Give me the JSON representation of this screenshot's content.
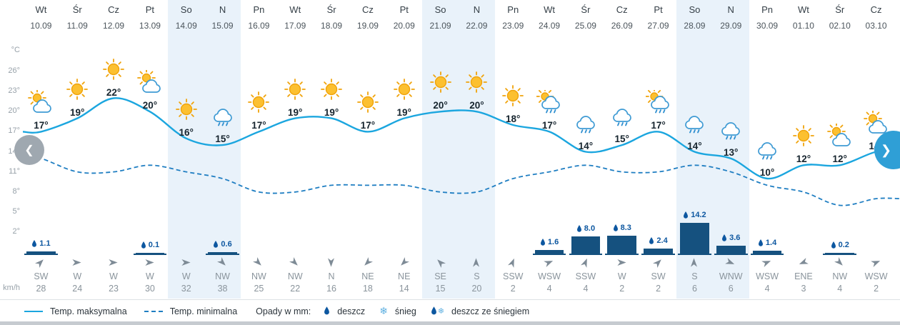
{
  "unit_labels": {
    "temp_axis": "°C",
    "wind_axis": "km/h"
  },
  "nav": {
    "prev": "❮",
    "next": "❯"
  },
  "legend": {
    "max_temp": "Temp. maksymalna",
    "min_temp": "Temp. minimalna",
    "precip_mm": "Opady w mm:",
    "rain": "deszcz",
    "snow": "śnieg",
    "rain_snow": "deszcz ze śniegiem"
  },
  "colors": {
    "max_line": "#1ba6df",
    "min_line": "#1f7ec2",
    "precip_bar": "#15517f",
    "weekend_bg": "#e9f2fa",
    "sun": "#fcc030",
    "next_button": "#2f9fd6"
  },
  "days": [
    {
      "day": "Wt",
      "date": "10.09",
      "temp": "17°",
      "icon": "sun-cloud",
      "precip": "1.1",
      "wind_dir": "SW",
      "wind_speed": "28",
      "weekend": false
    },
    {
      "day": "Śr",
      "date": "11.09",
      "temp": "19°",
      "icon": "sun",
      "precip": "",
      "wind_dir": "W",
      "wind_speed": "24",
      "weekend": false
    },
    {
      "day": "Cz",
      "date": "12.09",
      "temp": "22°",
      "icon": "sun",
      "precip": "",
      "wind_dir": "W",
      "wind_speed": "23",
      "weekend": false
    },
    {
      "day": "Pt",
      "date": "13.09",
      "temp": "20°",
      "icon": "sun-cloud",
      "precip": "0.1",
      "wind_dir": "W",
      "wind_speed": "30",
      "weekend": false
    },
    {
      "day": "So",
      "date": "14.09",
      "temp": "16°",
      "icon": "sun",
      "precip": "",
      "wind_dir": "W",
      "wind_speed": "32",
      "weekend": true
    },
    {
      "day": "N",
      "date": "15.09",
      "temp": "15°",
      "icon": "cloud-rain",
      "precip": "0.6",
      "wind_dir": "NW",
      "wind_speed": "38",
      "weekend": true
    },
    {
      "day": "Pn",
      "date": "16.09",
      "temp": "17°",
      "icon": "sun",
      "precip": "",
      "wind_dir": "NW",
      "wind_speed": "25",
      "weekend": false
    },
    {
      "day": "Wt",
      "date": "17.09",
      "temp": "19°",
      "icon": "sun",
      "precip": "",
      "wind_dir": "NW",
      "wind_speed": "22",
      "weekend": false
    },
    {
      "day": "Śr",
      "date": "18.09",
      "temp": "19°",
      "icon": "sun",
      "precip": "",
      "wind_dir": "N",
      "wind_speed": "16",
      "weekend": false
    },
    {
      "day": "Cz",
      "date": "19.09",
      "temp": "17°",
      "icon": "sun",
      "precip": "",
      "wind_dir": "NE",
      "wind_speed": "18",
      "weekend": false
    },
    {
      "day": "Pt",
      "date": "20.09",
      "temp": "19°",
      "icon": "sun",
      "precip": "",
      "wind_dir": "NE",
      "wind_speed": "14",
      "weekend": false
    },
    {
      "day": "So",
      "date": "21.09",
      "temp": "20°",
      "icon": "sun",
      "precip": "",
      "wind_dir": "SE",
      "wind_speed": "15",
      "weekend": true
    },
    {
      "day": "N",
      "date": "22.09",
      "temp": "20°",
      "icon": "sun",
      "precip": "",
      "wind_dir": "S",
      "wind_speed": "20",
      "weekend": true
    },
    {
      "day": "Pn",
      "date": "23.09",
      "temp": "18°",
      "icon": "sun",
      "precip": "",
      "wind_dir": "SSW",
      "wind_speed": "2",
      "weekend": false
    },
    {
      "day": "Wt",
      "date": "24.09",
      "temp": "17°",
      "icon": "sun-cloud-rain",
      "precip": "1.6",
      "wind_dir": "WSW",
      "wind_speed": "4",
      "weekend": false
    },
    {
      "day": "Śr",
      "date": "25.09",
      "temp": "14°",
      "icon": "cloud-rain",
      "precip": "8.0",
      "wind_dir": "SSW",
      "wind_speed": "4",
      "weekend": false
    },
    {
      "day": "Cz",
      "date": "26.09",
      "temp": "15°",
      "icon": "cloud-rain",
      "precip": "8.3",
      "wind_dir": "W",
      "wind_speed": "2",
      "weekend": false
    },
    {
      "day": "Pt",
      "date": "27.09",
      "temp": "17°",
      "icon": "sun-cloud-rain",
      "precip": "2.4",
      "wind_dir": "SW",
      "wind_speed": "2",
      "weekend": false
    },
    {
      "day": "So",
      "date": "28.09",
      "temp": "14°",
      "icon": "cloud-rain",
      "precip": "14.2",
      "wind_dir": "S",
      "wind_speed": "6",
      "weekend": true
    },
    {
      "day": "N",
      "date": "29.09",
      "temp": "13°",
      "icon": "cloud-rain",
      "precip": "3.6",
      "wind_dir": "WNW",
      "wind_speed": "6",
      "weekend": true
    },
    {
      "day": "Pn",
      "date": "30.09",
      "temp": "10°",
      "icon": "cloud-rain",
      "precip": "1.4",
      "wind_dir": "WSW",
      "wind_speed": "4",
      "weekend": false
    },
    {
      "day": "Wt",
      "date": "01.10",
      "temp": "12°",
      "icon": "sun",
      "precip": "",
      "wind_dir": "ENE",
      "wind_speed": "3",
      "weekend": false
    },
    {
      "day": "Śr",
      "date": "02.10",
      "temp": "12°",
      "icon": "sun-cloud",
      "precip": "0.2",
      "wind_dir": "NW",
      "wind_speed": "4",
      "weekend": false
    },
    {
      "day": "Cz",
      "date": "03.10",
      "temp": "14°",
      "icon": "sun-cloud",
      "precip": "",
      "wind_dir": "WSW",
      "wind_speed": "2",
      "weekend": false
    }
  ],
  "chart_data": {
    "type": "line",
    "x": [
      "10.09",
      "11.09",
      "12.09",
      "13.09",
      "14.09",
      "15.09",
      "16.09",
      "17.09",
      "18.09",
      "19.09",
      "20.09",
      "21.09",
      "22.09",
      "23.09",
      "24.09",
      "25.09",
      "26.09",
      "27.09",
      "28.09",
      "29.09",
      "30.09",
      "01.10",
      "02.10",
      "03.10"
    ],
    "yticks": [
      2,
      5,
      8,
      11,
      14,
      17,
      20,
      23,
      26
    ],
    "ylabel": "°C",
    "ylim": [
      0,
      28
    ],
    "grid": false,
    "legend_position": "bottom",
    "series": [
      {
        "name": "Temp. maksymalna",
        "type": "line",
        "style": "solid",
        "unit": "°C",
        "values": [
          17,
          19,
          22,
          20,
          16,
          15,
          17,
          19,
          19,
          17,
          19,
          20,
          20,
          18,
          17,
          14,
          15,
          17,
          14,
          13,
          10,
          12,
          12,
          14
        ]
      },
      {
        "name": "Temp. minimalna",
        "type": "line",
        "style": "dashed",
        "unit": "°C",
        "values": [
          13,
          11,
          11,
          12,
          11,
          10,
          8,
          8,
          9,
          9,
          9,
          8,
          8,
          10,
          11,
          12,
          11,
          11,
          12,
          11,
          9,
          8,
          6,
          7
        ]
      },
      {
        "name": "Opady",
        "type": "bar",
        "unit": "mm",
        "values": [
          1.1,
          0,
          0,
          0.1,
          0,
          0.6,
          0,
          0,
          0,
          0,
          0,
          0,
          0,
          0,
          1.6,
          8.0,
          8.3,
          2.4,
          14.2,
          3.6,
          1.4,
          0,
          0.2,
          0
        ]
      }
    ],
    "wind": {
      "unit": "km/h",
      "directions": [
        "SW",
        "W",
        "W",
        "W",
        "W",
        "NW",
        "NW",
        "NW",
        "N",
        "NE",
        "NE",
        "SE",
        "S",
        "SSW",
        "WSW",
        "SSW",
        "W",
        "SW",
        "S",
        "WNW",
        "WSW",
        "ENE",
        "NW",
        "WSW"
      ],
      "speeds": [
        28,
        24,
        23,
        30,
        32,
        38,
        25,
        22,
        16,
        18,
        14,
        15,
        20,
        2,
        4,
        4,
        2,
        2,
        6,
        6,
        4,
        3,
        4,
        2
      ]
    }
  }
}
